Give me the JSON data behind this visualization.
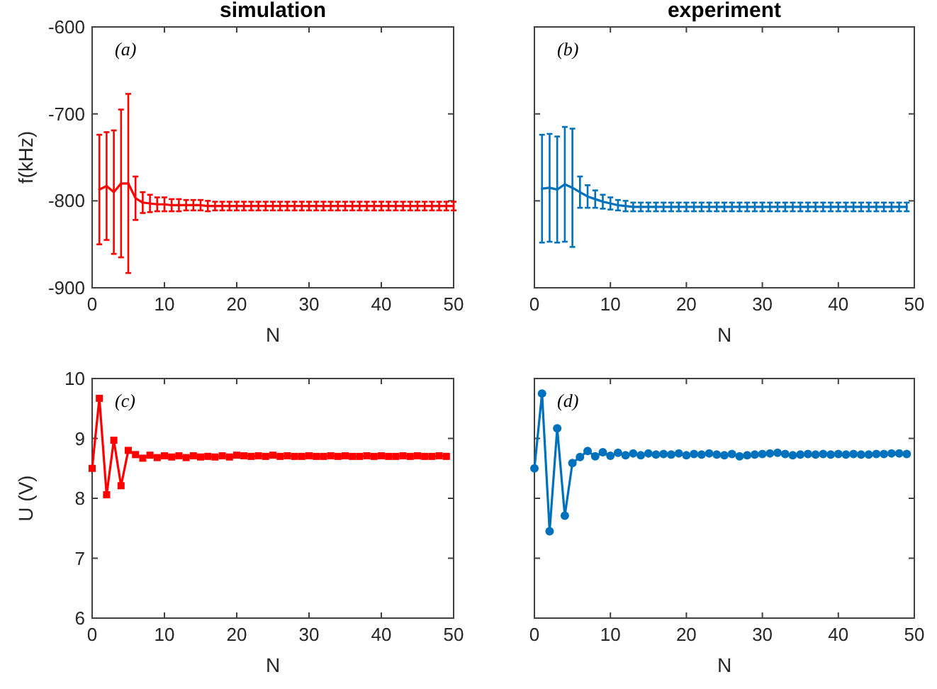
{
  "chart_data": [
    {
      "type": "line",
      "title": "simulation",
      "xlabel": "N",
      "ylabel": "f(kHz)",
      "annotations": [
        "(a)"
      ],
      "xlim": [
        0,
        50
      ],
      "xticks": [
        0,
        10,
        20,
        30,
        40,
        50
      ],
      "ylim": [
        -900,
        -600
      ],
      "yticks": [
        -900,
        -800,
        -700,
        -600
      ],
      "grid": false,
      "marker": "none",
      "line_style": "solid",
      "series": [
        {
          "color": "#ff0000",
          "x": [
            1,
            2,
            3,
            4,
            5,
            6,
            7,
            8,
            9,
            10,
            11,
            12,
            13,
            14,
            15,
            16,
            17,
            18,
            19,
            20,
            21,
            22,
            23,
            24,
            25,
            26,
            27,
            28,
            29,
            30,
            31,
            32,
            33,
            34,
            35,
            36,
            37,
            38,
            39,
            40,
            41,
            42,
            43,
            44,
            45,
            46,
            47,
            48,
            49,
            50
          ],
          "values": [
            -787,
            -783,
            -790,
            -780,
            -780,
            -797,
            -802,
            -803,
            -804,
            -804,
            -805,
            -805,
            -805,
            -805,
            -805,
            -806,
            -806,
            -806,
            -806,
            -806,
            -806,
            -806,
            -806,
            -806,
            -806,
            -806,
            -806,
            -806,
            -806,
            -806,
            -806,
            -806,
            -806,
            -806,
            -806,
            -806,
            -806,
            -806,
            -806,
            -806,
            -806,
            -806,
            -806,
            -806,
            -806,
            -806,
            -806,
            -806,
            -806,
            -806
          ],
          "errors": [
            63,
            62,
            71,
            85,
            103,
            25,
            12,
            10,
            8,
            8,
            7,
            7,
            6,
            6,
            6,
            6,
            5,
            5,
            5,
            5,
            5,
            5,
            5,
            5,
            5,
            5,
            5,
            5,
            5,
            5,
            5,
            5,
            5,
            5,
            5,
            5,
            5,
            5,
            5,
            5,
            5,
            5,
            5,
            5,
            5,
            5,
            5,
            5,
            5,
            5
          ]
        }
      ]
    },
    {
      "type": "line",
      "title": "experiment",
      "xlabel": "N",
      "annotations": [
        "(b)"
      ],
      "tick_labels": "x",
      "xlim": [
        0,
        50
      ],
      "xticks": [
        0,
        10,
        20,
        30,
        40,
        50
      ],
      "ylim": [
        -900,
        -600
      ],
      "yticks": [
        -900,
        -800,
        -700,
        -600
      ],
      "grid": false,
      "marker": "none",
      "line_style": "solid",
      "series": [
        {
          "color": "#0072bd",
          "x": [
            1,
            2,
            3,
            4,
            5,
            6,
            7,
            8,
            9,
            10,
            11,
            12,
            13,
            14,
            15,
            16,
            17,
            18,
            19,
            20,
            21,
            22,
            23,
            24,
            25,
            26,
            27,
            28,
            29,
            30,
            31,
            32,
            33,
            34,
            35,
            36,
            37,
            38,
            39,
            40,
            41,
            42,
            43,
            44,
            45,
            46,
            47,
            48,
            49
          ],
          "values": [
            -786,
            -785,
            -787,
            -781,
            -785,
            -790,
            -795,
            -798,
            -801,
            -803,
            -805,
            -806,
            -807,
            -807,
            -807,
            -807,
            -807,
            -807,
            -807,
            -807,
            -807,
            -807,
            -807,
            -807,
            -807,
            -807,
            -807,
            -807,
            -807,
            -807,
            -807,
            -807,
            -807,
            -807,
            -807,
            -807,
            -807,
            -807,
            -807,
            -807,
            -807,
            -807,
            -807,
            -807,
            -807,
            -807,
            -807,
            -807,
            -807
          ],
          "errors": [
            62,
            62,
            61,
            66,
            68,
            18,
            13,
            10,
            8,
            7,
            6,
            6,
            5,
            5,
            5,
            5,
            5,
            5,
            5,
            5,
            5,
            5,
            5,
            5,
            5,
            5,
            5,
            5,
            5,
            5,
            5,
            5,
            5,
            5,
            5,
            5,
            5,
            5,
            5,
            5,
            5,
            5,
            5,
            5,
            5,
            5,
            5,
            5,
            5
          ]
        }
      ]
    },
    {
      "type": "line",
      "xlabel": "N",
      "ylabel": "U (V)",
      "annotations": [
        "(c)"
      ],
      "xlim": [
        0,
        50
      ],
      "xticks": [
        0,
        10,
        20,
        30,
        40,
        50
      ],
      "ylim": [
        6,
        10
      ],
      "yticks": [
        6,
        7,
        8,
        9,
        10
      ],
      "grid": false,
      "marker": "square",
      "line_style": "solid",
      "series": [
        {
          "color": "#ff0000",
          "x": [
            0,
            1,
            2,
            3,
            4,
            5,
            6,
            7,
            8,
            9,
            10,
            11,
            12,
            13,
            14,
            15,
            16,
            17,
            18,
            19,
            20,
            21,
            22,
            23,
            24,
            25,
            26,
            27,
            28,
            29,
            30,
            31,
            32,
            33,
            34,
            35,
            36,
            37,
            38,
            39,
            40,
            41,
            42,
            43,
            44,
            45,
            46,
            47,
            48,
            49
          ],
          "values": [
            8.5,
            9.67,
            8.06,
            8.97,
            8.21,
            8.8,
            8.73,
            8.67,
            8.72,
            8.68,
            8.71,
            8.69,
            8.71,
            8.68,
            8.71,
            8.69,
            8.7,
            8.69,
            8.71,
            8.69,
            8.72,
            8.71,
            8.7,
            8.71,
            8.7,
            8.72,
            8.7,
            8.71,
            8.7,
            8.7,
            8.71,
            8.7,
            8.7,
            8.71,
            8.7,
            8.71,
            8.7,
            8.7,
            8.71,
            8.7,
            8.71,
            8.7,
            8.7,
            8.71,
            8.7,
            8.71,
            8.7,
            8.7,
            8.71,
            8.7
          ]
        }
      ]
    },
    {
      "type": "line",
      "xlabel": "N",
      "annotations": [
        "(d)"
      ],
      "tick_labels": "x",
      "xlim": [
        0,
        50
      ],
      "xticks": [
        0,
        10,
        20,
        30,
        40,
        50
      ],
      "ylim": [
        6,
        10
      ],
      "yticks": [
        6,
        7,
        8,
        9,
        10
      ],
      "grid": false,
      "marker": "circle",
      "line_style": "solid",
      "series": [
        {
          "color": "#0072bd",
          "x": [
            0,
            1,
            2,
            3,
            4,
            5,
            6,
            7,
            8,
            9,
            10,
            11,
            12,
            13,
            14,
            15,
            16,
            17,
            18,
            19,
            20,
            21,
            22,
            23,
            24,
            25,
            26,
            27,
            28,
            29,
            30,
            31,
            32,
            33,
            34,
            35,
            36,
            37,
            38,
            39,
            40,
            41,
            42,
            43,
            44,
            45,
            46,
            47,
            48,
            49
          ],
          "values": [
            8.5,
            9.75,
            7.45,
            9.17,
            7.71,
            8.59,
            8.69,
            8.79,
            8.7,
            8.77,
            8.71,
            8.76,
            8.72,
            8.75,
            8.72,
            8.75,
            8.73,
            8.74,
            8.73,
            8.75,
            8.72,
            8.74,
            8.73,
            8.75,
            8.73,
            8.72,
            8.74,
            8.7,
            8.72,
            8.73,
            8.74,
            8.75,
            8.76,
            8.74,
            8.72,
            8.73,
            8.74,
            8.73,
            8.74,
            8.73,
            8.74,
            8.73,
            8.74,
            8.73,
            8.73,
            8.74,
            8.74,
            8.75,
            8.75,
            8.74
          ]
        }
      ]
    }
  ]
}
